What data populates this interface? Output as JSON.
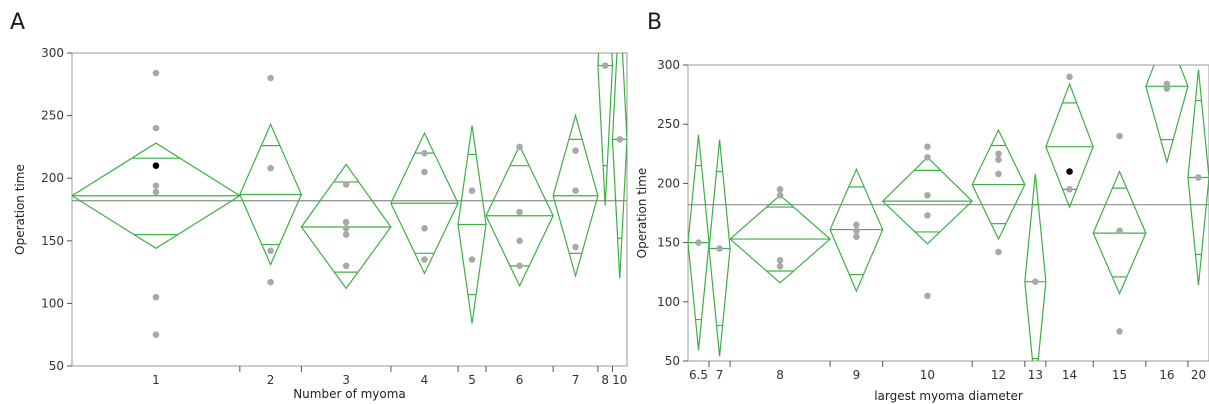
{
  "panels": {
    "a_letter": "A",
    "b_letter": "B"
  },
  "chart_data": [
    {
      "type": "scatter",
      "xlabel": "Number of myoma",
      "ylabel": "Operation time",
      "ylim": [
        50,
        300
      ],
      "yticks": [
        50,
        100,
        150,
        200,
        250,
        300
      ],
      "grand_mean": 182,
      "groups": [
        {
          "label": "1",
          "mean": 186,
          "upper": 228,
          "lower": 144,
          "overlap_high": 216,
          "overlap_low": 155,
          "width_share": 0.3
        },
        {
          "label": "2",
          "mean": 187,
          "upper": 243,
          "lower": 131,
          "overlap_high": 226,
          "overlap_low": 147,
          "width_share": 0.11
        },
        {
          "label": "3",
          "mean": 161,
          "upper": 211,
          "lower": 112,
          "overlap_high": 197,
          "overlap_low": 125,
          "width_share": 0.16
        },
        {
          "label": "4",
          "mean": 180,
          "upper": 236,
          "lower": 124,
          "overlap_high": 220,
          "overlap_low": 140,
          "width_share": 0.12
        },
        {
          "label": "5",
          "mean": 163,
          "upper": 242,
          "lower": 84,
          "overlap_high": 219,
          "overlap_low": 107,
          "width_share": 0.05
        },
        {
          "label": "6",
          "mean": 170,
          "upper": 226,
          "lower": 114,
          "overlap_high": 210,
          "overlap_low": 130,
          "width_share": 0.12
        },
        {
          "label": "7",
          "mean": 186,
          "upper": 250,
          "lower": 122,
          "overlap_high": 231,
          "overlap_low": 140,
          "width_share": 0.08
        },
        {
          "label": "8",
          "mean": 290,
          "upper": 402,
          "lower": 178,
          "overlap_high": 370,
          "overlap_low": 210,
          "width_share": 0.026
        },
        {
          "label": "10",
          "mean": 231,
          "upper": 343,
          "lower": 120,
          "overlap_high": 311,
          "overlap_low": 152,
          "width_share": 0.026
        }
      ],
      "points": [
        {
          "x": "1",
          "y": 284
        },
        {
          "x": "1",
          "y": 240
        },
        {
          "x": "1",
          "y": 210,
          "highlight": true
        },
        {
          "x": "1",
          "y": 194
        },
        {
          "x": "1",
          "y": 189
        },
        {
          "x": "1",
          "y": 105
        },
        {
          "x": "1",
          "y": 75
        },
        {
          "x": "2",
          "y": 280
        },
        {
          "x": "2",
          "y": 208
        },
        {
          "x": "2",
          "y": 142
        },
        {
          "x": "2",
          "y": 117
        },
        {
          "x": "3",
          "y": 195
        },
        {
          "x": "3",
          "y": 165
        },
        {
          "x": "3",
          "y": 160
        },
        {
          "x": "3",
          "y": 155
        },
        {
          "x": "3",
          "y": 130
        },
        {
          "x": "4",
          "y": 220
        },
        {
          "x": "4",
          "y": 205
        },
        {
          "x": "4",
          "y": 160
        },
        {
          "x": "4",
          "y": 135
        },
        {
          "x": "5",
          "y": 190
        },
        {
          "x": "5",
          "y": 135
        },
        {
          "x": "6",
          "y": 225
        },
        {
          "x": "6",
          "y": 173
        },
        {
          "x": "6",
          "y": 150
        },
        {
          "x": "6",
          "y": 130
        },
        {
          "x": "7",
          "y": 222
        },
        {
          "x": "7",
          "y": 190
        },
        {
          "x": "7",
          "y": 145
        },
        {
          "x": "8",
          "y": 290
        },
        {
          "x": "10",
          "y": 231
        }
      ]
    },
    {
      "type": "scatter",
      "xlabel": "largest myoma diameter",
      "ylabel": "Operation time",
      "ylim": [
        50,
        300
      ],
      "yticks": [
        50,
        100,
        150,
        200,
        250,
        300
      ],
      "grand_mean": 182,
      "groups": [
        {
          "label": "6.5",
          "mean": 150,
          "upper": 241,
          "lower": 59,
          "overlap_high": 215,
          "overlap_low": 85,
          "width_share": 0.04
        },
        {
          "label": "7",
          "mean": 145,
          "upper": 237,
          "lower": 54,
          "overlap_high": 210,
          "overlap_low": 80,
          "width_share": 0.04
        },
        {
          "label": "8",
          "mean": 153,
          "upper": 190,
          "lower": 116,
          "overlap_high": 180,
          "overlap_low": 126,
          "width_share": 0.19
        },
        {
          "label": "9",
          "mean": 161,
          "upper": 212,
          "lower": 109,
          "overlap_high": 197,
          "overlap_low": 123,
          "width_share": 0.1
        },
        {
          "label": "10",
          "mean": 185,
          "upper": 222,
          "lower": 149,
          "overlap_high": 211,
          "overlap_low": 159,
          "width_share": 0.17
        },
        {
          "label": "12",
          "mean": 199,
          "upper": 245,
          "lower": 153,
          "overlap_high": 232,
          "overlap_low": 166,
          "width_share": 0.1
        },
        {
          "label": "13",
          "mean": 117,
          "upper": 208,
          "lower": 26,
          "overlap_high": 182,
          "overlap_low": 52,
          "width_share": 0.04
        },
        {
          "label": "14",
          "mean": 231,
          "upper": 284,
          "lower": 180,
          "overlap_high": 268,
          "overlap_low": 195,
          "width_share": 0.09
        },
        {
          "label": "15",
          "mean": 158,
          "upper": 210,
          "lower": 107,
          "overlap_high": 196,
          "overlap_low": 121,
          "width_share": 0.1
        },
        {
          "label": "16",
          "mean": 282,
          "upper": 328,
          "lower": 218,
          "overlap_high": 308,
          "overlap_low": 237,
          "width_share": 0.08
        },
        {
          "label": "20",
          "mean": 205,
          "upper": 296,
          "lower": 114,
          "overlap_high": 270,
          "overlap_low": 140,
          "width_share": 0.04
        }
      ],
      "points": [
        {
          "x": "6.5",
          "y": 150
        },
        {
          "x": "7",
          "y": 145
        },
        {
          "x": "8",
          "y": 195
        },
        {
          "x": "8",
          "y": 190
        },
        {
          "x": "8",
          "y": 135
        },
        {
          "x": "8",
          "y": 130
        },
        {
          "x": "9",
          "y": 165
        },
        {
          "x": "9",
          "y": 160
        },
        {
          "x": "9",
          "y": 155
        },
        {
          "x": "10",
          "y": 231
        },
        {
          "x": "10",
          "y": 222
        },
        {
          "x": "10",
          "y": 190
        },
        {
          "x": "10",
          "y": 173
        },
        {
          "x": "10",
          "y": 105
        },
        {
          "x": "12",
          "y": 225
        },
        {
          "x": "12",
          "y": 220
        },
        {
          "x": "12",
          "y": 208
        },
        {
          "x": "12",
          "y": 142
        },
        {
          "x": "13",
          "y": 117
        },
        {
          "x": "14",
          "y": 290
        },
        {
          "x": "14",
          "y": 210,
          "highlight": true
        },
        {
          "x": "14",
          "y": 195
        },
        {
          "x": "15",
          "y": 240
        },
        {
          "x": "15",
          "y": 160
        },
        {
          "x": "15",
          "y": 75
        },
        {
          "x": "16",
          "y": 284
        },
        {
          "x": "16",
          "y": 280
        },
        {
          "x": "20",
          "y": 205
        }
      ]
    }
  ],
  "colors": {
    "diamond": "#3cb043",
    "point": "#a9a9a9",
    "highlight_point": "#000000",
    "grand_mean": "#8c8c8c",
    "frame": "#9a9a9a",
    "grid": "#d0d0d0"
  }
}
